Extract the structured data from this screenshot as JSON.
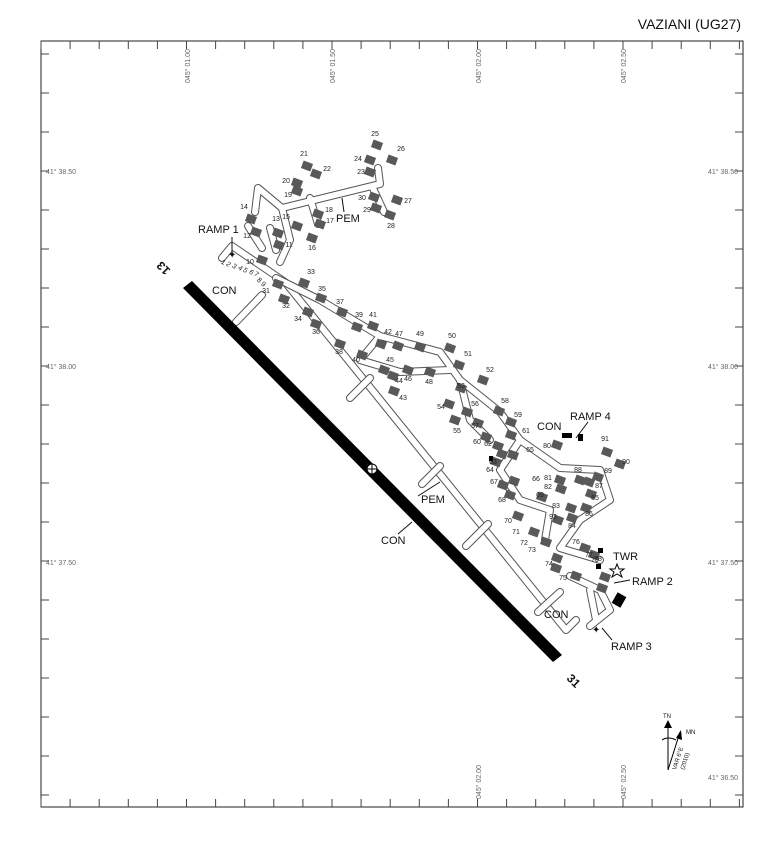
{
  "title": "VAZIANI (UG27)",
  "longitude_labels": {
    "top": [
      "045° 01.00",
      "045° 01.50",
      "045° 02.00",
      "045° 02.50"
    ],
    "bottom": [
      "045° 02.00",
      "045° 02.50"
    ]
  },
  "latitude_labels": {
    "left": [
      "41° 38.50",
      "41° 38.00",
      "41° 37.50"
    ],
    "right": [
      "41° 38.50",
      "41° 38.00",
      "41° 37.50",
      "41° 36.50"
    ]
  },
  "runway": {
    "end_northwest": "13",
    "end_southeast": "31"
  },
  "area_labels": {
    "ramp1": "RAMP 1",
    "ramp2": "RAMP 2",
    "ramp3": "RAMP 3",
    "ramp4": "RAMP 4",
    "con_nw": "CON",
    "con_mid": "CON",
    "con_ramp4": "CON",
    "con_se": "CON",
    "pem_north": "PEM",
    "pem_mid": "PEM",
    "twr": "TWR"
  },
  "north_arrow": {
    "tn": "TN",
    "mn": "MN",
    "variation": "VAR 6°E",
    "year": "(2010)"
  },
  "stand_numbers": [
    "1",
    "2",
    "3",
    "4",
    "5",
    "6",
    "7",
    "8",
    "9",
    "10",
    "11",
    "12",
    "13",
    "14",
    "15",
    "16",
    "17",
    "18",
    "19",
    "20",
    "21",
    "22",
    "23",
    "24",
    "25",
    "26",
    "27",
    "28",
    "29",
    "30",
    "31",
    "32",
    "33",
    "34",
    "35",
    "36",
    "37",
    "38",
    "39",
    "40",
    "41",
    "42",
    "43",
    "44",
    "45",
    "46",
    "47",
    "48",
    "49",
    "50",
    "51",
    "52",
    "53",
    "54",
    "55",
    "56",
    "57",
    "58",
    "59",
    "60",
    "61",
    "62",
    "63",
    "64",
    "65",
    "66",
    "67",
    "68",
    "69",
    "70",
    "71",
    "72",
    "73",
    "74",
    "75",
    "76",
    "77",
    "78",
    "79",
    "80",
    "81",
    "82",
    "83",
    "84",
    "85",
    "86",
    "87",
    "88",
    "89",
    "90",
    "91",
    "92"
  ]
}
